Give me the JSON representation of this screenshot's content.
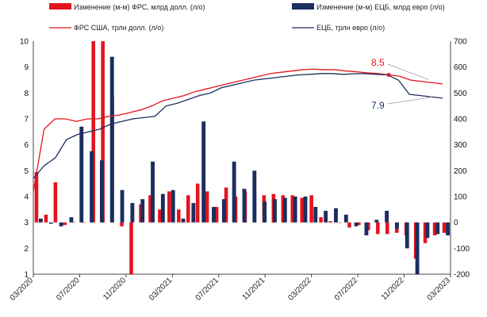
{
  "chart_data": {
    "type": "bar+line",
    "legend": {
      "position": "top",
      "fed_bar": "Изменение (м-м) ФРС, млрд долл. (л/о)",
      "ecb_bar": "Изменение (м-м) ЕЦБ, млрд евро (л/о)",
      "fed_line": "ФРС США, трлн долл. (л/о)",
      "ecb_line": "ЕЦБ, трлн евро (л/о)"
    },
    "colors": {
      "fed": "#e3141e",
      "ecb": "#1b2f5e",
      "callout": "#b0b0b0"
    },
    "y_left": {
      "min": 1,
      "max": 10,
      "ticks": [
        "1",
        "2",
        "3",
        "4",
        "5",
        "6",
        "7",
        "8",
        "9",
        "10"
      ]
    },
    "y_right": {
      "min": -200,
      "max": 700,
      "ticks": [
        "-200",
        "-100",
        "0",
        "100",
        "200",
        "300",
        "400",
        "500",
        "600",
        "700"
      ]
    },
    "x_ticks": [
      "03/2020",
      "07/2020",
      "11/2020",
      "03/2021",
      "07/2021",
      "11/2021",
      "03/2022",
      "07/2022",
      "11/2022",
      "03/2023"
    ],
    "bars": {
      "fed": [
        195,
        30,
        155,
        -10,
        0,
        0,
        700,
        700,
        485,
        -15,
        -215,
        70,
        105,
        50,
        120,
        50,
        105,
        150,
        120,
        60,
        135,
        100,
        120,
        120,
        105,
        110,
        105,
        105,
        95,
        105,
        20,
        5,
        0,
        -20,
        -10,
        -30,
        -45,
        -45,
        -40,
        -50,
        -140,
        -80,
        -50,
        -40
      ],
      "ecb": [
        15,
        -5,
        -15,
        20,
        370,
        275,
        240,
        640,
        125,
        75,
        90,
        235,
        110,
        125,
        15,
        75,
        390,
        60,
        90,
        235,
        130,
        200,
        80,
        90,
        95,
        100,
        100,
        60,
        45,
        55,
        30,
        -15,
        -50,
        10,
        45,
        -25,
        -100,
        -220,
        -60,
        -45,
        -50
      ]
    },
    "lines": {
      "fed": [
        4.2,
        6.6,
        7.0,
        7.0,
        6.9,
        7.0,
        7.0,
        7.1,
        7.15,
        7.25,
        7.35,
        7.5,
        7.7,
        7.8,
        7.9,
        8.05,
        8.15,
        8.25,
        8.35,
        8.45,
        8.55,
        8.65,
        8.75,
        8.8,
        8.85,
        8.9,
        8.92,
        8.9,
        8.9,
        8.85,
        8.82,
        8.78,
        8.75,
        8.7,
        8.65,
        8.5,
        8.45,
        8.4,
        8.35
      ],
      "ecb": [
        4.7,
        5.2,
        5.5,
        6.2,
        6.4,
        6.5,
        6.6,
        6.8,
        6.9,
        7.0,
        7.05,
        7.1,
        7.5,
        7.6,
        7.75,
        7.9,
        8.0,
        8.2,
        8.3,
        8.4,
        8.5,
        8.55,
        8.6,
        8.65,
        8.7,
        8.72,
        8.75,
        8.75,
        8.72,
        8.74,
        8.75,
        8.72,
        8.7,
        8.5,
        7.95,
        7.9,
        7.85,
        7.8
      ]
    },
    "annotations": [
      {
        "text": "8.5",
        "series": "fed"
      },
      {
        "text": "7.9",
        "series": "ecb"
      }
    ]
  }
}
